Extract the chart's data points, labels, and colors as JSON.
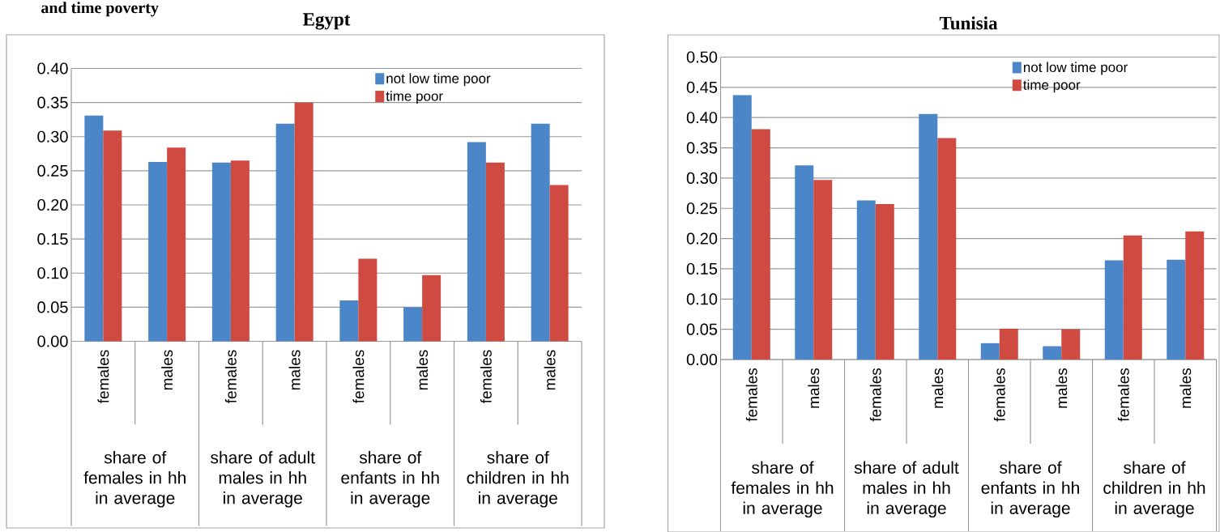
{
  "chart_data": [
    {
      "type": "bar",
      "title": "Egypt",
      "categories": [
        "females",
        "males",
        "females",
        "males",
        "females",
        "males",
        "females",
        "males"
      ],
      "series": [
        {
          "name": "not low time poor",
          "color": "#4a86c8",
          "values": [
            0.331,
            0.263,
            0.262,
            0.319,
            0.06,
            0.05,
            0.292,
            0.319
          ]
        },
        {
          "name": "time poor",
          "color": "#cf4a40",
          "values": [
            0.309,
            0.284,
            0.265,
            0.35,
            0.121,
            0.097,
            0.262,
            0.229
          ]
        }
      ],
      "ylim": [
        0,
        0.4
      ],
      "yticks": [
        {
          "value": 0,
          "label": "0.00"
        },
        {
          "value": 0.05,
          "label": "0.05"
        },
        {
          "value": 0.1,
          "label": "0.10"
        },
        {
          "value": 0.15,
          "label": "0.15"
        },
        {
          "value": 0.2,
          "label": "0.20"
        },
        {
          "value": 0.25,
          "label": "0.25"
        },
        {
          "value": 0.3,
          "label": "0.30"
        },
        {
          "value": 0.35,
          "label": "0.35"
        },
        {
          "value": 0.4,
          "label": "0.40"
        }
      ],
      "grid": "y",
      "legend": "top right",
      "annotations": [
        "share of females in hh in average",
        "share of adult males in hh in average",
        "share of enfants in hh in average",
        "share of children in hh in average",
        "and time poverty"
      ]
    },
    {
      "type": "bar",
      "title": "Tunisia",
      "categories": [
        "females",
        "males",
        "females",
        "males",
        "females",
        "males",
        "females",
        "males"
      ],
      "series": [
        {
          "name": "not low time poor",
          "color": "#4a86c8",
          "values": [
            0.437,
            0.321,
            0.263,
            0.406,
            0.027,
            0.022,
            0.164,
            0.165
          ]
        },
        {
          "name": "time poor",
          "color": "#cf4a40",
          "values": [
            0.381,
            0.297,
            0.257,
            0.366,
            0.051,
            0.05,
            0.205,
            0.212
          ]
        }
      ],
      "ylim": [
        0,
        0.5
      ],
      "yticks": [
        {
          "value": 0,
          "label": "0.00"
        },
        {
          "value": 0.05,
          "label": "0.05"
        },
        {
          "value": 0.1,
          "label": "0.10"
        },
        {
          "value": 0.15,
          "label": "0.15"
        },
        {
          "value": 0.2,
          "label": "0.20"
        },
        {
          "value": 0.25,
          "label": "0.25"
        },
        {
          "value": 0.3,
          "label": "0.30"
        },
        {
          "value": 0.35,
          "label": "0.35"
        },
        {
          "value": 0.4,
          "label": "0.40"
        },
        {
          "value": 0.45,
          "label": "0.45"
        },
        {
          "value": 0.5,
          "label": "0.50"
        }
      ],
      "grid": "y",
      "legend": "top right",
      "annotations": [
        "share of females in hh in average",
        "share of adult males in hh in average",
        "share of enfants in hh in average",
        "share of children in hh in average"
      ]
    }
  ]
}
